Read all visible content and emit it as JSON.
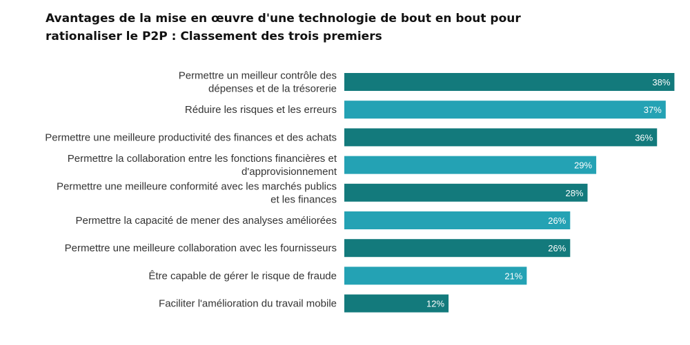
{
  "chart_data": {
    "type": "bar",
    "orientation": "horizontal",
    "title_lines": [
      "Avantages de la mise en œuvre d'une technologie de bout en bout pour",
      "rationaliser le P2P : Classement des trois premiers"
    ],
    "categories": [
      [
        "Permettre un meilleur contrôle des",
        "dépenses et de la trésorerie"
      ],
      [
        "Réduire les risques et les erreurs"
      ],
      [
        "Permettre une meilleure productivité des finances et des achats"
      ],
      [
        "Permettre la collaboration entre les fonctions financières et",
        "d'approvisionnement"
      ],
      [
        "Permettre une meilleure conformité avec les marchés publics",
        "et les finances"
      ],
      [
        "Permettre la capacité de mener des analyses améliorées"
      ],
      [
        "Permettre une meilleure collaboration avec les fournisseurs"
      ],
      [
        "Être capable de gérer le risque de fraude"
      ],
      [
        "Faciliter l'amélioration du travail mobile"
      ]
    ],
    "values": [
      38,
      37,
      36,
      29,
      28,
      26,
      26,
      21,
      12
    ],
    "value_labels": [
      "38%",
      "37%",
      "36%",
      "29%",
      "28%",
      "26%",
      "26%",
      "21%",
      "12%"
    ],
    "unit": "%",
    "xlim": [
      0,
      39
    ],
    "grid": false,
    "legend": "none",
    "colors": [
      "#137a7c",
      "#24a2b4",
      "#137a7c",
      "#24a2b4",
      "#137a7c",
      "#24a2b4",
      "#137a7c",
      "#24a2b4",
      "#137a7c"
    ]
  }
}
